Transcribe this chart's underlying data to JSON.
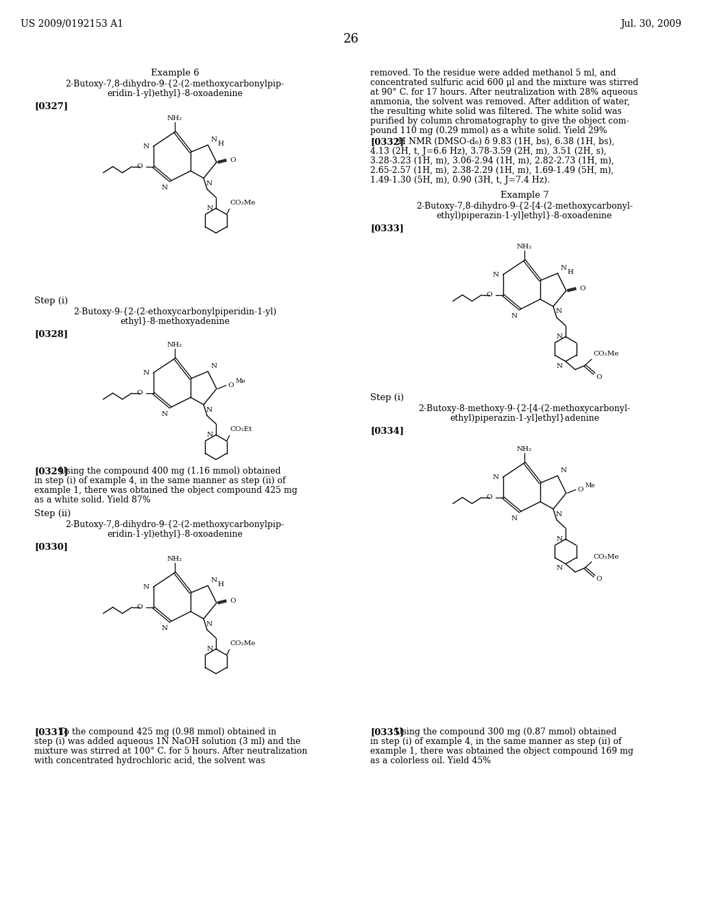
{
  "page_header_left": "US 2009/0192153 A1",
  "page_header_right": "Jul. 30, 2009",
  "page_number": "26",
  "background": "#ffffff"
}
